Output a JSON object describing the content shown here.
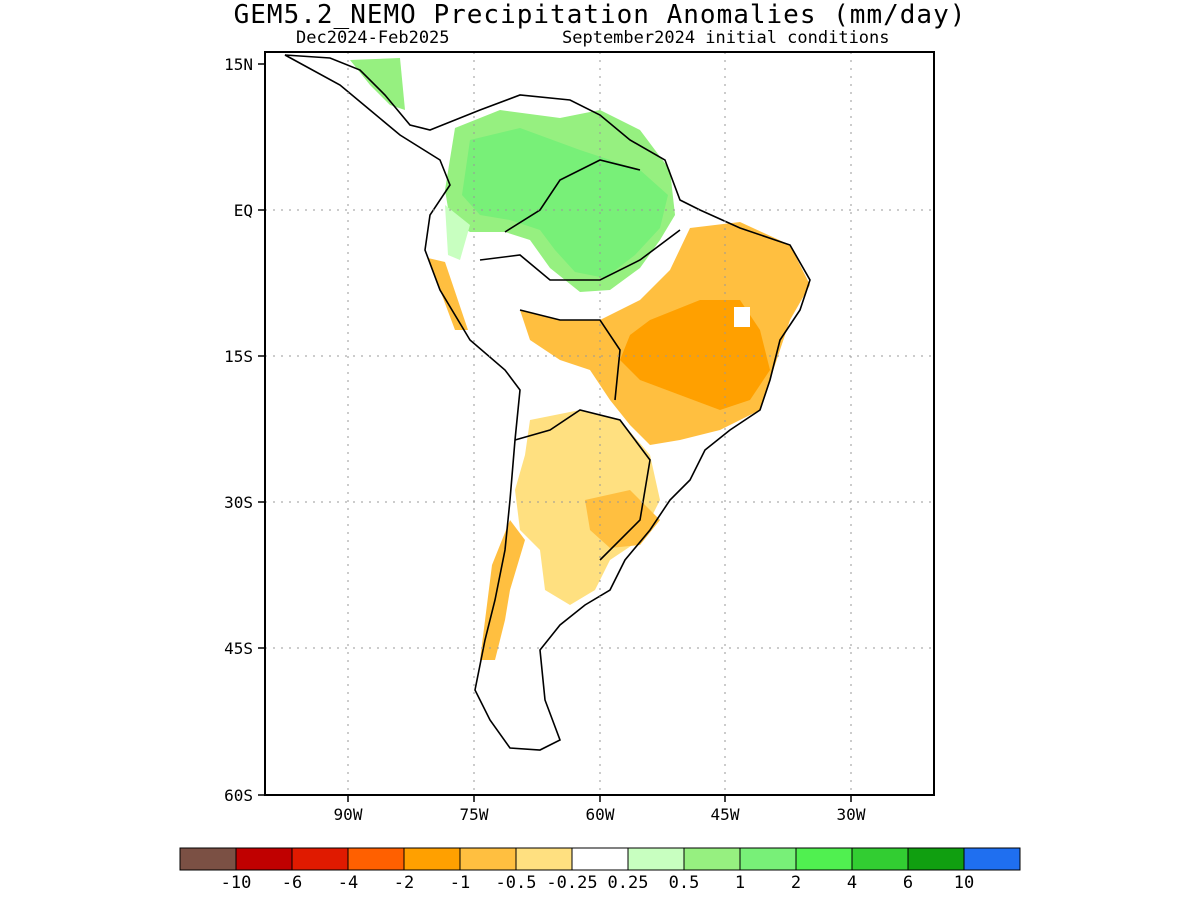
{
  "title": "GEM5.2_NEMO Precipitation Anomalies (mm/day)",
  "subtitle_left": "Dec2024-Feb2025",
  "subtitle_right": "September2024 initial conditions",
  "lat_labels": [
    "15N",
    "EQ",
    "15S",
    "30S",
    "45S",
    "60S"
  ],
  "lon_labels": [
    "90W",
    "75W",
    "60W",
    "45W",
    "30W"
  ],
  "colorbar": {
    "colors": [
      "#7b5044",
      "#c00000",
      "#e01a00",
      "#ff6000",
      "#ffa000",
      "#ffbf40",
      "#ffe080",
      "#ffffff",
      "#c8ffc0",
      "#96f080",
      "#78f078",
      "#50f050",
      "#32cd32",
      "#109f10",
      "#1f6ff0"
    ],
    "labels": [
      "-10",
      "-6",
      "-4",
      "-2",
      "-1",
      "-0.5",
      "-0.25",
      "0.25",
      "0.5",
      "1",
      "2",
      "4",
      "6",
      "10"
    ]
  },
  "map_data": {
    "projection": "lat-lon",
    "lon_range": [
      "100W",
      "20W"
    ],
    "lat_range": [
      "60S",
      "15N"
    ],
    "anomaly_regions": [
      {
        "region": "Northern South America / Amazon",
        "anomaly": "0.5 to 2",
        "color": "#78f078"
      },
      {
        "region": "Central America",
        "anomaly": "0.5 to 1",
        "color": "#96f080"
      },
      {
        "region": "Northeast & central Brazil",
        "anomaly": "-1 to -2",
        "color": "#ffa000"
      },
      {
        "region": "Bolivia / Paraguay",
        "anomaly": "-0.5 to -1",
        "color": "#ffbf40"
      },
      {
        "region": "Northern & central Argentina",
        "anomaly": "-0.25 to -0.5",
        "color": "#ffe080"
      },
      {
        "region": "Southern Chile coast",
        "anomaly": "-0.5 to -1",
        "color": "#ffbf40"
      }
    ]
  }
}
